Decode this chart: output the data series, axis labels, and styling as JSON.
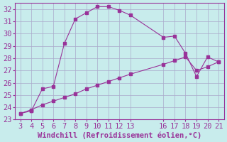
{
  "xlabel": "Windchill (Refroidissement éolien,°C)",
  "background_color": "#c8ecec",
  "grid_color": "#aaaacc",
  "line_color": "#993399",
  "curve1_x": [
    3,
    4,
    4,
    5,
    6,
    7,
    8,
    9,
    10,
    11,
    12,
    13,
    16,
    17,
    18,
    19,
    20,
    21
  ],
  "curve1_y": [
    23.5,
    23.7,
    23.7,
    25.5,
    25.7,
    29.2,
    31.2,
    31.7,
    32.2,
    32.2,
    31.9,
    31.5,
    29.7,
    29.8,
    28.4,
    26.5,
    28.1,
    27.7
  ],
  "curve2_x": [
    3,
    4,
    5,
    6,
    7,
    8,
    9,
    10,
    11,
    12,
    13,
    16,
    17,
    18,
    19,
    20,
    21
  ],
  "curve2_y": [
    23.5,
    23.8,
    24.2,
    24.5,
    24.8,
    25.1,
    25.5,
    25.8,
    26.1,
    26.4,
    26.7,
    27.5,
    27.8,
    28.1,
    27.0,
    27.3,
    27.7
  ],
  "xticks": [
    3,
    4,
    5,
    6,
    7,
    8,
    9,
    10,
    11,
    12,
    13,
    16,
    17,
    18,
    19,
    20,
    21
  ],
  "yticks": [
    23,
    24,
    25,
    26,
    27,
    28,
    29,
    30,
    31,
    32
  ],
  "xlim": [
    2.5,
    21.5
  ],
  "ylim": [
    23,
    32.5
  ],
  "fontsize": 7.5
}
